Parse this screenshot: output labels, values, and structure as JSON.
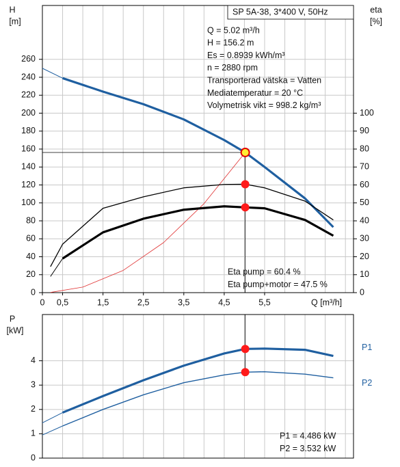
{
  "chart_data": [
    {
      "type": "line",
      "title": "SP 5A-38, 3*400 V, 50Hz",
      "annotations": [
        "Q = 5.02 m³/h",
        "H = 156.2 m",
        "Es = 0.8939 kWh/m³",
        "n = 2880 rpm",
        "Transporterad vätska = Vatten",
        "Mediatemperatur = 20 °C",
        "Volymetrisk vikt = 998.2 kg/m³"
      ],
      "notes": [
        "Eta pump = 60.4 %",
        "Eta pump+motor = 47.5 %"
      ],
      "ylabel": "H",
      "yunit": "[m]",
      "y2label": "eta",
      "y2unit": "[%]",
      "xlabel": "Q [m³/h]",
      "xlim": [
        0,
        7.7
      ],
      "ylim": [
        0,
        320
      ],
      "y2lim": [
        0,
        160
      ],
      "xticks": [
        0,
        {
          "value": 0.5,
          "label": "0,5"
        },
        {
          "value": 1.5,
          "label": "1,5"
        },
        {
          "value": 2.5,
          "label": "2,5"
        },
        {
          "value": 3.5,
          "label": "3,5"
        },
        {
          "value": 4.5,
          "label": "4,5"
        },
        {
          "value": 5.5,
          "label": "5,5"
        }
      ],
      "xgrid": [
        0.5,
        1,
        1.5,
        2,
        2.5,
        3,
        3.5,
        4,
        4.5,
        5,
        5.5,
        6,
        6.5,
        7,
        7.5
      ],
      "yticks": [
        0,
        20,
        40,
        60,
        80,
        100,
        120,
        140,
        160,
        180,
        200,
        220,
        240,
        260
      ],
      "y2ticks": [
        0,
        10,
        20,
        30,
        40,
        50,
        60,
        70,
        80,
        90,
        100
      ],
      "grid": true,
      "series": [
        {
          "color": "#1f5fa0",
          "width": 1,
          "x": [
            0,
            0.5
          ],
          "values": [
            250,
            239
          ]
        },
        {
          "color": "#1f5fa0",
          "width": 3.2,
          "x": [
            0.5,
            1.5,
            2.5,
            3.5,
            4.5,
            5.02,
            5.5,
            6.5,
            7.2
          ],
          "values": [
            239,
            224,
            210,
            193,
            170,
            156.2,
            140,
            105,
            73
          ]
        },
        {
          "color": "#e03030",
          "width": 0.8,
          "x": [
            0.2,
            1,
            2,
            3,
            4,
            5.02
          ],
          "values": [
            0.25,
            6.2,
            24.8,
            55.8,
            99.2,
            156.2
          ]
        },
        {
          "color": "#000000",
          "width": 1.3,
          "axis": "y2",
          "x": [
            0.2,
            0.5,
            1.5,
            2.5,
            3.5,
            4.5,
            5.02,
            5.5,
            6.5,
            7.2
          ],
          "values": [
            14.5,
            27,
            47,
            53.4,
            58.4,
            60.3,
            60.4,
            58.4,
            51,
            40.5
          ]
        },
        {
          "color": "#000000",
          "width": 1,
          "axis": "y2",
          "x": [
            0.2,
            0.5
          ],
          "values": [
            9,
            19
          ]
        },
        {
          "color": "#000000",
          "width": 3.2,
          "axis": "y2",
          "x": [
            0.5,
            1.5,
            2.5,
            3.5,
            4.5,
            5.02,
            5.5,
            6.5,
            7.2
          ],
          "values": [
            19,
            33.6,
            41.2,
            46.2,
            48.1,
            47.5,
            47,
            40.5,
            31.7
          ]
        }
      ],
      "markers": [
        {
          "x": 5.02,
          "y": 60.4,
          "axis": "y2",
          "color": "#ff1a1a"
        },
        {
          "x": 5.02,
          "y": 47.5,
          "axis": "y2",
          "color": "#ff1a1a"
        },
        {
          "x": 5.02,
          "y": 156.2,
          "color": "#ffee33",
          "edge": "#e00000"
        }
      ]
    },
    {
      "type": "line",
      "ylabel": "P",
      "yunit": "[kW]",
      "xlim": [
        0,
        7.7
      ],
      "ylim": [
        0,
        5.9
      ],
      "xgrid": [
        0.5,
        1,
        1.5,
        2,
        2.5,
        3,
        3.5,
        4,
        4.5,
        5,
        5.5,
        6,
        6.5,
        7,
        7.5
      ],
      "yticks": [
        0,
        1,
        2,
        3,
        4
      ],
      "grid": true,
      "notes": [
        "P1 = 4.486 kW",
        "P2 = 3.532 kW"
      ],
      "series": [
        {
          "color": "#1f5fa0",
          "width": 1,
          "x": [
            0,
            0.5
          ],
          "values": [
            1.45,
            1.87
          ]
        },
        {
          "name": "P1",
          "color": "#1f5fa0",
          "width": 3.2,
          "x": [
            0.5,
            1.5,
            2.5,
            3.5,
            4.5,
            5.02,
            5.5,
            6.5,
            7.2
          ],
          "values": [
            1.87,
            2.55,
            3.2,
            3.8,
            4.3,
            4.486,
            4.5,
            4.45,
            4.2
          ]
        },
        {
          "color": "#1f5fa0",
          "width": 1,
          "x": [
            0,
            0.5
          ],
          "values": [
            0.95,
            1.32
          ]
        },
        {
          "name": "P2",
          "color": "#1f5fa0",
          "width": 1.4,
          "x": [
            0.5,
            1.5,
            2.5,
            3.5,
            4.5,
            5.02,
            5.5,
            6.5,
            7.2
          ],
          "values": [
            1.32,
            2.0,
            2.6,
            3.1,
            3.42,
            3.532,
            3.55,
            3.45,
            3.3
          ]
        }
      ],
      "markers": [
        {
          "x": 5.02,
          "y": 4.486,
          "color": "#ff1a1a"
        },
        {
          "x": 5.02,
          "y": 3.532,
          "color": "#ff1a1a"
        }
      ]
    }
  ]
}
